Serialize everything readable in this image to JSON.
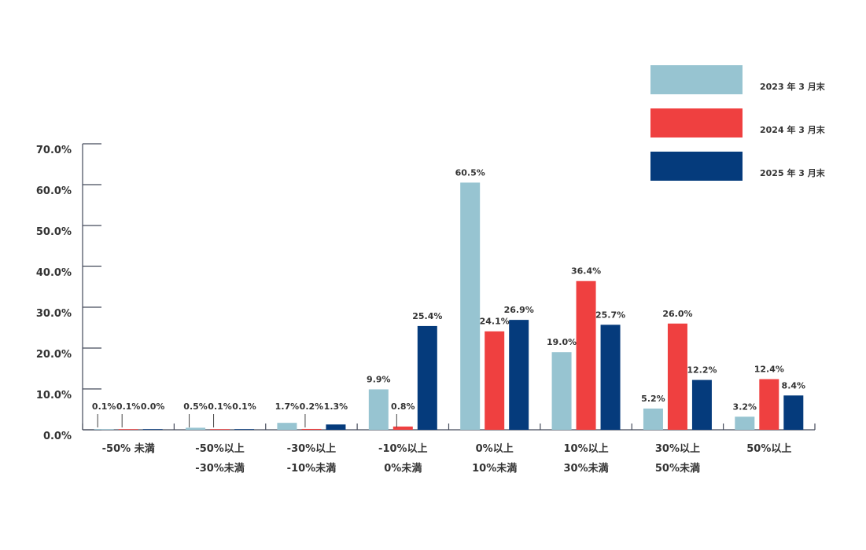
{
  "chart_data": {
    "type": "bar",
    "categories": [
      [
        "-50% 未満"
      ],
      [
        "-50%以上",
        "-30%未満"
      ],
      [
        "-30%以上",
        "-10%未満"
      ],
      [
        "-10%以上",
        "0%未満"
      ],
      [
        "0%以上",
        "10%未満"
      ],
      [
        "10%以上",
        "30%未満"
      ],
      [
        "30%以上",
        "50%未満"
      ],
      [
        "50%以上"
      ]
    ],
    "series": [
      {
        "name": "2023 年 3 月末",
        "color": "#97c4d1",
        "values": [
          0.1,
          0.5,
          1.7,
          9.9,
          60.5,
          19.0,
          5.2,
          3.2
        ],
        "labels": [
          "0.1%",
          "0.5%",
          "1.7%",
          "9.9%",
          "60.5%",
          "19.0%",
          "5.2%",
          "3.2%"
        ]
      },
      {
        "name": "2024 年 3 月末",
        "color": "#ef4040",
        "values": [
          0.1,
          0.1,
          0.2,
          0.8,
          24.1,
          36.4,
          26.0,
          12.4
        ],
        "labels": [
          "0.1%",
          "0.1%",
          "0.2%",
          "0.8%",
          "24.1%",
          "36.4%",
          "26.0%",
          "12.4%"
        ]
      },
      {
        "name": "2025 年 3 月末",
        "color": "#053b7c",
        "values": [
          0.0,
          0.1,
          1.3,
          25.4,
          26.9,
          25.7,
          12.2,
          8.4
        ],
        "labels": [
          "0.0%",
          "0.1%",
          "1.3%",
          "25.4%",
          "26.9%",
          "25.7%",
          "12.2%",
          "8.4%"
        ]
      }
    ],
    "yticks": [
      "0.0%",
      "10.0%",
      "20.0%",
      "30.0%",
      "40.0%",
      "50.0%",
      "60.0%",
      "70.0%"
    ],
    "ylim": [
      0,
      70
    ],
    "title": "",
    "xlabel": "",
    "ylabel": "",
    "grid": false,
    "legend_position": "top-right"
  }
}
